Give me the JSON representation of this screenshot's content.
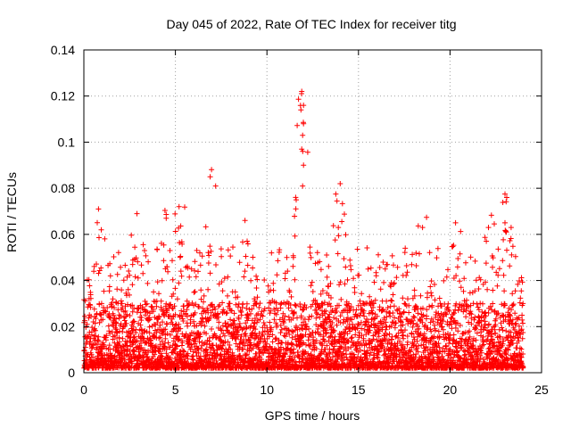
{
  "chart_data": {
    "type": "scatter",
    "title": "Day 045 of 2022, Rate Of TEC Index for receiver titg",
    "xlabel": "GPS time / hours",
    "ylabel": "ROTI / TECUs",
    "xlim": [
      0,
      25
    ],
    "ylim": [
      0,
      0.14
    ],
    "xticks": [
      0,
      5,
      10,
      15,
      20,
      25
    ],
    "yticks": [
      0,
      0.02,
      0.04,
      0.06,
      0.08,
      0.1,
      0.12,
      0.14
    ],
    "xtick_labels": [
      "0",
      "5",
      "10",
      "15",
      "20",
      "25"
    ],
    "ytick_labels": [
      "0",
      "0.02",
      "0.04",
      "0.06",
      "0.08",
      "0.1",
      "0.12",
      "0.14"
    ],
    "grid": true,
    "marker": "+",
    "series_color": "#ff0000",
    "series": [
      {
        "name": "ROTI",
        "x_range": [
          0,
          24
        ],
        "baseline_min": 0.002,
        "baseline_max": 0.03,
        "notable_points": [
          {
            "x": 0.8,
            "y": 0.071
          },
          {
            "x": 2.9,
            "y": 0.069
          },
          {
            "x": 4.5,
            "y": 0.067
          },
          {
            "x": 5.2,
            "y": 0.072
          },
          {
            "x": 6.9,
            "y": 0.085
          },
          {
            "x": 7.2,
            "y": 0.081
          },
          {
            "x": 8.8,
            "y": 0.066
          },
          {
            "x": 11.9,
            "y": 0.122
          },
          {
            "x": 12.0,
            "y": 0.116
          },
          {
            "x": 12.0,
            "y": 0.108
          },
          {
            "x": 11.95,
            "y": 0.103
          },
          {
            "x": 11.9,
            "y": 0.097
          },
          {
            "x": 12.0,
            "y": 0.09
          },
          {
            "x": 11.95,
            "y": 0.081
          },
          {
            "x": 11.6,
            "y": 0.075
          },
          {
            "x": 14.0,
            "y": 0.082
          },
          {
            "x": 13.9,
            "y": 0.063
          },
          {
            "x": 18.5,
            "y": 0.063
          },
          {
            "x": 20.3,
            "y": 0.065
          },
          {
            "x": 22.1,
            "y": 0.063
          },
          {
            "x": 23.1,
            "y": 0.076
          },
          {
            "x": 23.0,
            "y": 0.065
          }
        ]
      }
    ]
  }
}
